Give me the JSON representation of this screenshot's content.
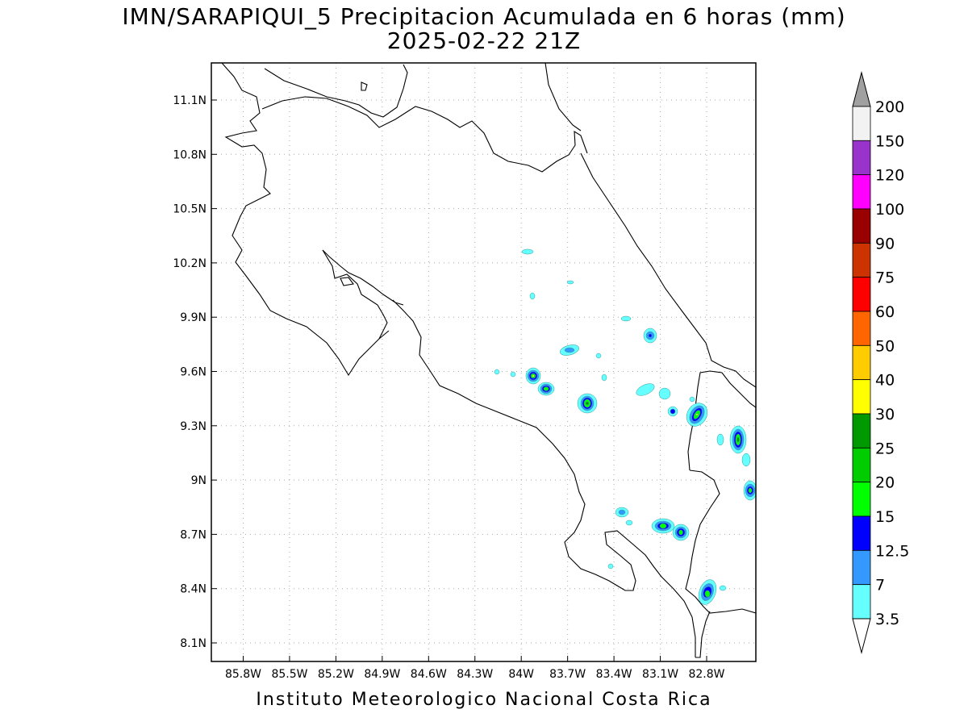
{
  "title": {
    "line1": "IMN/SARAPIQUI_5 Precipitacion Acumulada en 6 horas (mm)",
    "line2": "2025-02-22 21Z"
  },
  "axes": {
    "x_ticks": [
      "85.8W",
      "85.5W",
      "85.2W",
      "84.9W",
      "84.6W",
      "84.3W",
      "84W",
      "83.7W",
      "83.4W",
      "83.1W",
      "82.8W"
    ],
    "y_ticks": [
      "11.1N",
      "10.8N",
      "10.5N",
      "10.2N",
      "9.9N",
      "9.6N",
      "9.3N",
      "9N",
      "8.7N",
      "8.4N",
      "8.1N"
    ]
  },
  "colorbar": {
    "labels": [
      "200",
      "150",
      "120",
      "100",
      "90",
      "75",
      "60",
      "50",
      "40",
      "30",
      "25",
      "20",
      "15",
      "12.5",
      "7",
      "3.5"
    ],
    "colors": [
      "#f2f2f2",
      "#9933cc",
      "#ff00ff",
      "#990000",
      "#cc3300",
      "#ff0000",
      "#ff6600",
      "#ffcc00",
      "#ffff00",
      "#009900",
      "#00cc00",
      "#00ff00",
      "#0000ff",
      "#3399ff",
      "#66ffff"
    ]
  },
  "precip_colors": {
    "light": "#66ffff",
    "moderate": "#3399ff",
    "heavy": "#0000ff",
    "very_heavy": "#00ff00",
    "peak": "#009900"
  },
  "footer": "Instituto Meteorologico Nacional Costa Rica"
}
